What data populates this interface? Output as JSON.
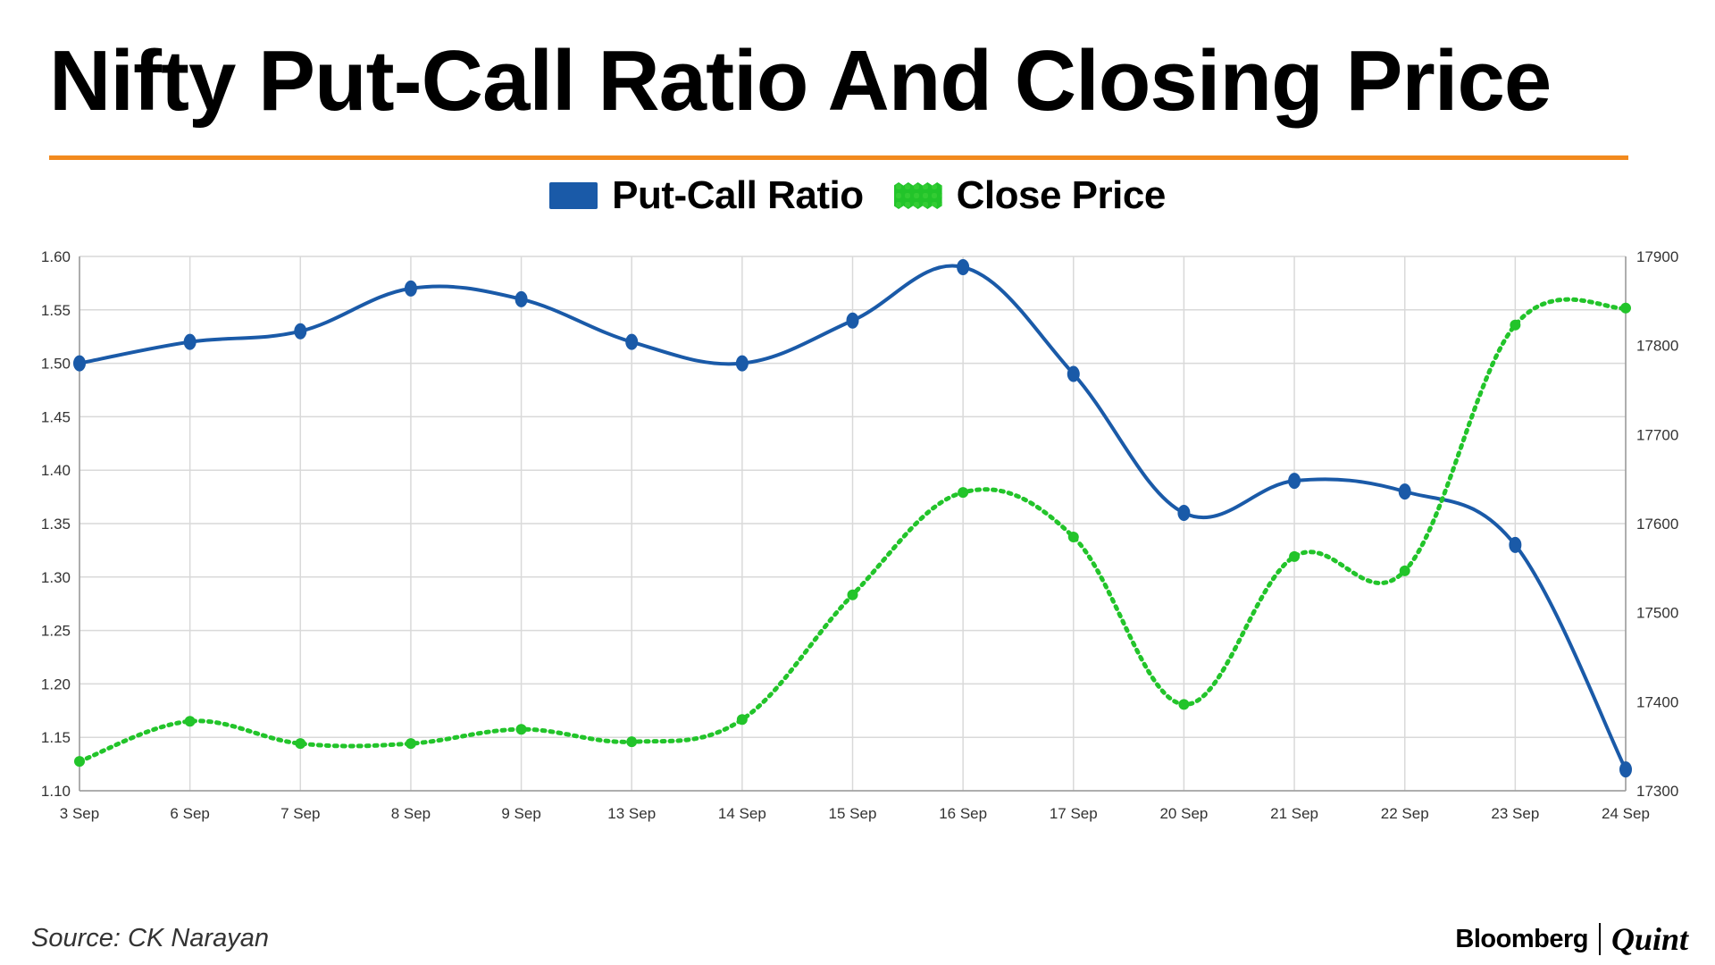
{
  "title": "Nifty Put-Call Ratio And Closing Price",
  "legend": {
    "put_label": "Put-Call Ratio",
    "close_label": "Close Price"
  },
  "source": "Source: CK Narayan",
  "brand": {
    "left": "Bloomberg",
    "right": "Quint"
  },
  "colors": {
    "put_call": "#1a5aa8",
    "close": "#22c42a",
    "rule": "#f28a1e",
    "grid": "#d9d9d9"
  },
  "chart_data": {
    "type": "line",
    "categories": [
      "3 Sep",
      "6 Sep",
      "7 Sep",
      "8 Sep",
      "9 Sep",
      "13 Sep",
      "14 Sep",
      "15 Sep",
      "16 Sep",
      "17 Sep",
      "20 Sep",
      "21 Sep",
      "22 Sep",
      "23 Sep",
      "24 Sep"
    ],
    "series": [
      {
        "name": "Put-Call Ratio",
        "axis": "left",
        "style": "solid",
        "values": [
          1.5,
          1.52,
          1.53,
          1.57,
          1.56,
          1.52,
          1.5,
          1.54,
          1.59,
          1.49,
          1.36,
          1.39,
          1.38,
          1.33,
          1.12
        ]
      },
      {
        "name": "Close Price",
        "axis": "right",
        "style": "dotted",
        "values": [
          17333,
          17378,
          17353,
          17353,
          17369,
          17355,
          17380,
          17520,
          17635,
          17585,
          17397,
          17563,
          17547,
          17823,
          17842
        ]
      }
    ],
    "y_left": {
      "range": [
        1.1,
        1.6
      ],
      "ticks": [
        "1.60",
        "1.55",
        "1.50",
        "1.45",
        "1.40",
        "1.35",
        "1.30",
        "1.25",
        "1.20",
        "1.15",
        "1.10"
      ]
    },
    "y_right": {
      "range": [
        17300,
        17900
      ],
      "ticks": [
        "17900",
        "17800",
        "17700",
        "17600",
        "17500",
        "17400",
        "17300"
      ]
    },
    "grid": true,
    "legend_position": "top-center",
    "smooth": true
  }
}
